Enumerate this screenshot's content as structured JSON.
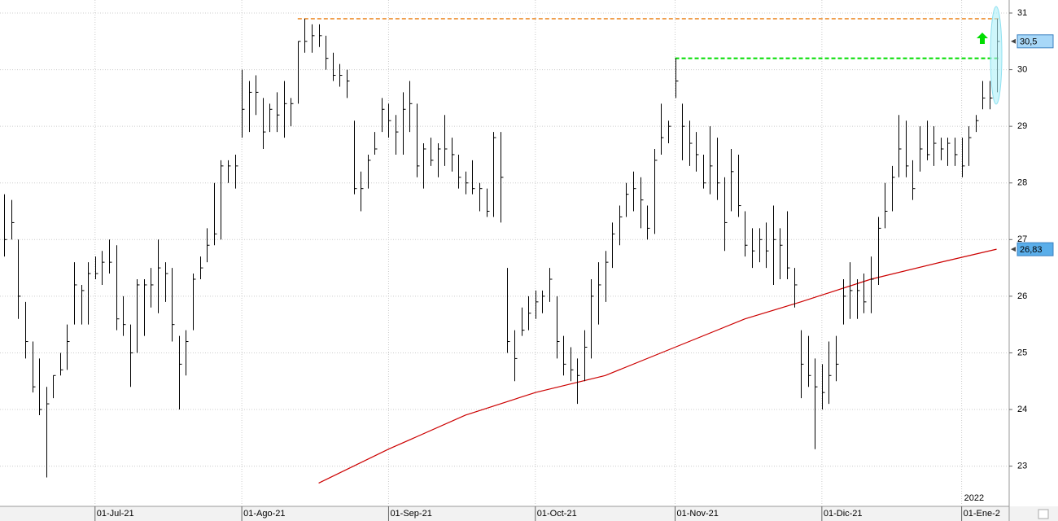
{
  "chart_data": {
    "type": "ohlc",
    "color": "#000000",
    "high": [
      27.8,
      27.7,
      27.0,
      25.9,
      25.2,
      24.9,
      24.4,
      24.6,
      25.0,
      25.5,
      26.6,
      26.2,
      26.6,
      26.7,
      26.8,
      27.0,
      26.9,
      26.0,
      25.5,
      26.3,
      26.3,
      26.5,
      27.0,
      26.6,
      26.5,
      25.3,
      25.4,
      26.4,
      26.7,
      27.2,
      28.0,
      28.4,
      28.4,
      28.5,
      30.0,
      29.8,
      29.9,
      29.5,
      29.4,
      29.6,
      29.8,
      29.5,
      30.5,
      30.9,
      30.8,
      30.8,
      30.6,
      30.3,
      30.1,
      30.0,
      29.1,
      28.2,
      28.5,
      28.9,
      29.5,
      29.4,
      29.2,
      29.6,
      29.8,
      29.4,
      28.7,
      28.8,
      28.7,
      29.2,
      28.8,
      28.5,
      28.2,
      28.4,
      28.0,
      27.9,
      28.9,
      28.9,
      26.5,
      25.4,
      25.8,
      26.0,
      26.1,
      26.1,
      26.5,
      26.0,
      25.3,
      25.1,
      24.9,
      25.4,
      26.3,
      26.6,
      26.8,
      27.3,
      27.6,
      28.0,
      28.2,
      28.1,
      27.6,
      28.6,
      29.4,
      29.1,
      30.2,
      29.4,
      29.1,
      28.9,
      28.5,
      29.0,
      28.8,
      28.1,
      28.6,
      28.5,
      27.5,
      27.2,
      27.2,
      27.3,
      27.6,
      27.2,
      27.5,
      26.5,
      25.4,
      25.3,
      24.9,
      24.8,
      25.2,
      25.3,
      26.3,
      26.6,
      26.3,
      26.4,
      26.7,
      27.4,
      28.0,
      28.3,
      29.2,
      29.1,
      28.4,
      29.0,
      29.1,
      29.0,
      28.8,
      28.8,
      28.8,
      28.8,
      29.0,
      29.2,
      29.8,
      29.8,
      30.9
    ],
    "low": [
      26.7,
      27.0,
      25.6,
      24.9,
      24.3,
      23.9,
      22.8,
      24.2,
      24.6,
      24.7,
      25.5,
      25.5,
      25.5,
      26.3,
      26.2,
      26.4,
      25.4,
      25.3,
      24.4,
      25.0,
      25.3,
      25.8,
      25.7,
      25.9,
      25.2,
      24.0,
      24.6,
      25.4,
      26.3,
      26.6,
      26.9,
      27.0,
      28.0,
      27.9,
      28.8,
      28.9,
      29.2,
      28.6,
      28.9,
      28.9,
      28.8,
      29.0,
      29.4,
      30.3,
      30.3,
      30.4,
      30.0,
      29.8,
      29.7,
      29.5,
      27.8,
      27.5,
      27.9,
      28.5,
      28.9,
      28.8,
      28.5,
      28.5,
      28.9,
      28.1,
      27.9,
      28.3,
      28.1,
      28.3,
      28.2,
      27.9,
      27.8,
      27.8,
      27.5,
      27.4,
      27.4,
      27.3,
      25.0,
      24.5,
      25.3,
      25.4,
      25.6,
      25.7,
      25.9,
      24.9,
      24.6,
      24.5,
      24.1,
      24.5,
      24.9,
      25.5,
      25.9,
      26.5,
      26.9,
      27.4,
      27.5,
      27.2,
      27.0,
      27.1,
      28.5,
      28.7,
      29.5,
      28.4,
      28.3,
      28.2,
      27.9,
      27.8,
      27.7,
      26.8,
      27.5,
      27.4,
      26.7,
      26.5,
      26.6,
      26.5,
      26.2,
      26.3,
      26.3,
      25.8,
      24.2,
      24.4,
      23.3,
      24.0,
      24.1,
      24.5,
      25.5,
      25.6,
      25.6,
      25.7,
      25.7,
      26.2,
      27.2,
      27.5,
      28.1,
      28.1,
      27.7,
      28.2,
      28.4,
      28.3,
      28.4,
      28.3,
      28.3,
      28.1,
      28.3,
      28.9,
      29.3,
      29.3,
      29.6
    ],
    "close": [
      27.0,
      27.3,
      26.0,
      25.2,
      24.4,
      24.0,
      24.1,
      24.6,
      24.7,
      25.2,
      26.2,
      26.1,
      26.4,
      26.4,
      26.6,
      26.6,
      25.6,
      25.5,
      25.0,
      26.2,
      26.2,
      26.2,
      26.5,
      26.4,
      25.5,
      24.8,
      25.2,
      26.3,
      26.5,
      26.9,
      27.1,
      28.3,
      28.3,
      28.3,
      29.3,
      29.6,
      29.6,
      28.9,
      29.3,
      29.2,
      29.4,
      29.4,
      30.5,
      30.5,
      30.6,
      30.6,
      30.2,
      29.9,
      29.9,
      29.8,
      27.9,
      27.9,
      28.4,
      28.6,
      29.3,
      29.1,
      28.9,
      29.3,
      29.4,
      28.3,
      28.6,
      28.4,
      28.6,
      28.6,
      28.5,
      28.1,
      28.0,
      27.9,
      27.9,
      27.5,
      28.8,
      28.1,
      25.2,
      24.9,
      25.4,
      25.7,
      25.9,
      26.0,
      26.3,
      25.2,
      24.8,
      24.7,
      24.6,
      25.1,
      26.0,
      26.2,
      26.6,
      27.1,
      27.4,
      27.8,
      27.9,
      27.7,
      27.2,
      28.4,
      28.8,
      29.0,
      29.8,
      29.0,
      28.7,
      28.5,
      28.0,
      28.3,
      28.0,
      27.3,
      28.2,
      27.6,
      26.9,
      26.8,
      27.0,
      26.8,
      27.0,
      26.9,
      26.5,
      26.2,
      24.8,
      24.6,
      24.4,
      24.3,
      24.6,
      24.8,
      26.0,
      26.1,
      26.1,
      25.9,
      26.3,
      27.2,
      27.5,
      28.1,
      28.6,
      28.3,
      27.9,
      28.6,
      28.5,
      28.7,
      28.6,
      28.7,
      28.5,
      28.3,
      28.8,
      29.1,
      29.5,
      29.5,
      30.5
    ],
    "moving_average": {
      "color": "#cc0000",
      "x": [
        45,
        55,
        66,
        76,
        86,
        96,
        106,
        114,
        124,
        134,
        142
      ],
      "values": [
        22.7,
        23.3,
        23.9,
        24.3,
        24.6,
        25.1,
        25.6,
        25.9,
        26.3,
        26.6,
        26.83
      ]
    },
    "hlines": [
      {
        "value": 30.9,
        "x": 42,
        "color": "#f0a050"
      },
      {
        "value": 30.2,
        "x": 96,
        "color": "#00dd00"
      }
    ],
    "xlim": [
      -0.6,
      143.8
    ],
    "ylim": [
      22.29,
      31.23
    ],
    "xticks": [
      {
        "value": 13,
        "label": "01-Jul-21"
      },
      {
        "value": 34,
        "label": "01-Ago-21"
      },
      {
        "value": 55,
        "label": "01-Sep-21"
      },
      {
        "value": 76,
        "label": "01-Oct-21"
      },
      {
        "value": 96,
        "label": "01-Nov-21"
      },
      {
        "value": 117,
        "label": "01-Dic-21"
      },
      {
        "value": 137,
        "label": "01-Ene-2"
      }
    ],
    "yticks": [
      23,
      24,
      25,
      26,
      27,
      28,
      29,
      30,
      31
    ],
    "price_labels": [
      {
        "value": 30.5,
        "label": "30,5",
        "color": "#a8d8f8"
      },
      {
        "value": 26.83,
        "label": "26,83",
        "color": "#5aaeea"
      }
    ],
    "year_label": "2022",
    "grid": true
  }
}
